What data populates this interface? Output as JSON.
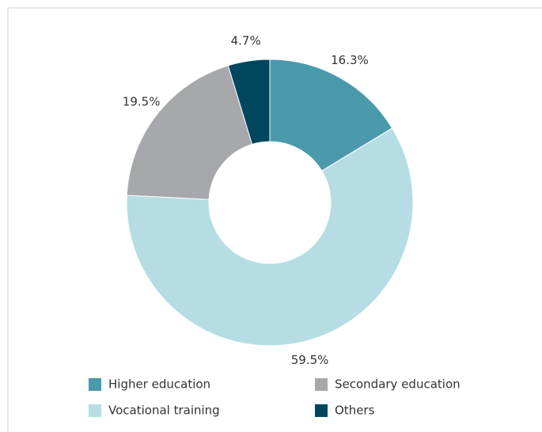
{
  "chart_data": {
    "type": "donut",
    "categories": [
      "Higher education",
      "Vocational training",
      "Secondary education",
      "Others"
    ],
    "values": [
      16.3,
      59.5,
      19.5,
      4.7
    ],
    "value_labels": [
      "16.3%",
      "59.5%",
      "19.5%",
      "4.7%"
    ],
    "colors": [
      "#4a9aab",
      "#b6dde4",
      "#a6a8ab",
      "#00465f"
    ],
    "legend": "bottom"
  }
}
